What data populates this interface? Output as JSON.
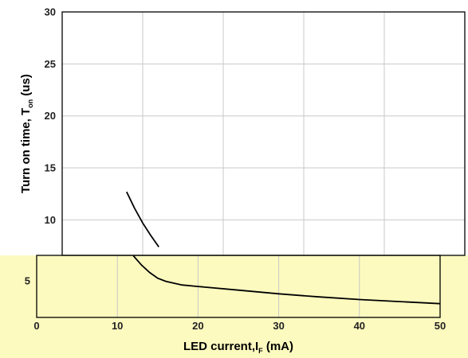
{
  "chart_data": {
    "type": "line",
    "title": "",
    "xlabel": {
      "main": "LED current,I",
      "sub": "F",
      "unit": " (mA)"
    },
    "ylabel": {
      "main": "Turn on time, T",
      "sub": "on",
      "unit": " (us)"
    },
    "xlim": [
      0,
      50
    ],
    "ylim": [
      0,
      30
    ],
    "x_ticks": [
      0,
      10,
      20,
      30,
      40,
      50
    ],
    "y_ticks": [
      5,
      10,
      15,
      20,
      25,
      30
    ],
    "grid": true,
    "series": [
      {
        "x": [
          8,
          9,
          10,
          11,
          12,
          13,
          14,
          15,
          16,
          18,
          20,
          25,
          30,
          35,
          40,
          45,
          50
        ],
        "y": [
          12.7,
          11.1,
          9.7,
          8.5,
          7.4,
          6.5,
          5.8,
          5.25,
          4.95,
          4.6,
          4.45,
          4.1,
          3.75,
          3.45,
          3.2,
          3.0,
          2.8
        ]
      }
    ]
  },
  "colors": {
    "upper_background": "#ffffff",
    "lower_background": "#fdfabf",
    "grid": "#c8c8c8",
    "frame": "#000000",
    "line": "#000000"
  }
}
